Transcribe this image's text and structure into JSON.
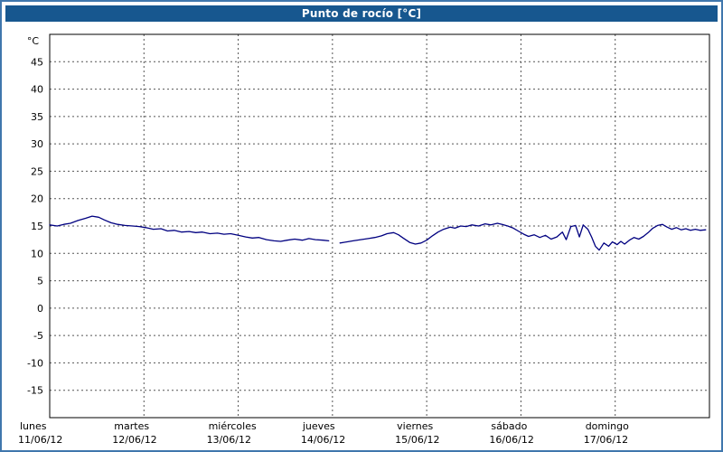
{
  "window": {
    "title": "Punto de rocío [°C]"
  },
  "colors": {
    "frame": "#4077ad",
    "title_bar": "#17578f",
    "title_text": "#ffffff",
    "grid": "#555555",
    "plot_border": "#000000",
    "line": "#000080",
    "background": "#ffffff"
  },
  "chart_data": {
    "type": "line",
    "title": "Punto de rocío [°C]",
    "ylabel": "°C",
    "xlabel": "",
    "grid": true,
    "legend_position": "none",
    "ylim": [
      -20,
      50
    ],
    "xlim": [
      0,
      7
    ],
    "y_ticks": [
      45,
      40,
      35,
      30,
      25,
      20,
      15,
      10,
      5,
      0,
      -5,
      -10,
      -15
    ],
    "x_days": [
      {
        "name": "lunes",
        "date": "11/06/12"
      },
      {
        "name": "martes",
        "date": "12/06/12"
      },
      {
        "name": "miércoles",
        "date": "13/06/12"
      },
      {
        "name": "jueves",
        "date": "14/06/12"
      },
      {
        "name": "viernes",
        "date": "15/06/12"
      },
      {
        "name": "sábado",
        "date": "16/06/12"
      },
      {
        "name": "domingo",
        "date": "17/06/12"
      }
    ],
    "series": [
      {
        "name": "Punto de rocío",
        "color": "#000080",
        "points": [
          [
            0.0,
            15.2
          ],
          [
            0.08,
            15.0
          ],
          [
            0.15,
            15.3
          ],
          [
            0.22,
            15.5
          ],
          [
            0.3,
            16.0
          ],
          [
            0.38,
            16.4
          ],
          [
            0.45,
            16.8
          ],
          [
            0.52,
            16.6
          ],
          [
            0.58,
            16.1
          ],
          [
            0.65,
            15.6
          ],
          [
            0.72,
            15.3
          ],
          [
            0.8,
            15.1
          ],
          [
            0.88,
            15.0
          ],
          [
            0.95,
            14.9
          ],
          [
            1.02,
            14.7
          ],
          [
            1.1,
            14.4
          ],
          [
            1.18,
            14.5
          ],
          [
            1.25,
            14.1
          ],
          [
            1.32,
            14.2
          ],
          [
            1.4,
            13.9
          ],
          [
            1.48,
            14.0
          ],
          [
            1.55,
            13.8
          ],
          [
            1.62,
            13.9
          ],
          [
            1.7,
            13.6
          ],
          [
            1.78,
            13.7
          ],
          [
            1.85,
            13.5
          ],
          [
            1.92,
            13.6
          ],
          [
            2.0,
            13.3
          ],
          [
            2.08,
            13.0
          ],
          [
            2.15,
            12.8
          ],
          [
            2.22,
            12.9
          ],
          [
            2.3,
            12.5
          ],
          [
            2.38,
            12.3
          ],
          [
            2.45,
            12.2
          ],
          [
            2.52,
            12.4
          ],
          [
            2.6,
            12.6
          ],
          [
            2.68,
            12.4
          ],
          [
            2.75,
            12.7
          ],
          [
            2.82,
            12.5
          ],
          [
            2.9,
            12.4
          ],
          [
            2.96,
            12.3
          ],
          null,
          [
            3.08,
            11.9
          ],
          [
            3.15,
            12.1
          ],
          [
            3.22,
            12.3
          ],
          [
            3.3,
            12.5
          ],
          [
            3.38,
            12.7
          ],
          [
            3.45,
            12.9
          ],
          [
            3.52,
            13.2
          ],
          [
            3.58,
            13.6
          ],
          [
            3.65,
            13.8
          ],
          [
            3.7,
            13.4
          ],
          [
            3.75,
            12.8
          ],
          [
            3.82,
            12.0
          ],
          [
            3.88,
            11.7
          ],
          [
            3.94,
            11.9
          ],
          [
            4.0,
            12.4
          ],
          [
            4.06,
            13.2
          ],
          [
            4.12,
            13.9
          ],
          [
            4.18,
            14.4
          ],
          [
            4.25,
            14.8
          ],
          [
            4.3,
            14.6
          ],
          [
            4.36,
            15.0
          ],
          [
            4.42,
            14.9
          ],
          [
            4.48,
            15.2
          ],
          [
            4.55,
            15.0
          ],
          [
            4.62,
            15.4
          ],
          [
            4.68,
            15.2
          ],
          [
            4.75,
            15.5
          ],
          [
            4.8,
            15.3
          ],
          [
            4.86,
            15.0
          ],
          [
            4.92,
            14.6
          ],
          [
            4.97,
            14.1
          ],
          [
            5.03,
            13.5
          ],
          [
            5.08,
            13.1
          ],
          [
            5.14,
            13.4
          ],
          [
            5.2,
            12.9
          ],
          [
            5.26,
            13.3
          ],
          [
            5.32,
            12.6
          ],
          [
            5.38,
            13.0
          ],
          [
            5.44,
            13.9
          ],
          [
            5.48,
            12.5
          ],
          [
            5.53,
            14.9
          ],
          [
            5.58,
            15.1
          ],
          [
            5.62,
            13.0
          ],
          [
            5.66,
            15.2
          ],
          [
            5.71,
            14.4
          ],
          [
            5.75,
            13.0
          ],
          [
            5.79,
            11.3
          ],
          [
            5.83,
            10.6
          ],
          [
            5.88,
            11.9
          ],
          [
            5.93,
            11.3
          ],
          [
            5.97,
            12.1
          ],
          [
            6.02,
            11.6
          ],
          [
            6.06,
            12.2
          ],
          [
            6.1,
            11.7
          ],
          [
            6.15,
            12.4
          ],
          [
            6.2,
            12.9
          ],
          [
            6.25,
            12.6
          ],
          [
            6.3,
            13.1
          ],
          [
            6.35,
            13.8
          ],
          [
            6.4,
            14.6
          ],
          [
            6.45,
            15.1
          ],
          [
            6.5,
            15.3
          ],
          [
            6.55,
            14.8
          ],
          [
            6.6,
            14.4
          ],
          [
            6.65,
            14.7
          ],
          [
            6.7,
            14.3
          ],
          [
            6.75,
            14.5
          ],
          [
            6.8,
            14.2
          ],
          [
            6.85,
            14.4
          ],
          [
            6.9,
            14.2
          ],
          [
            6.96,
            14.3
          ]
        ]
      }
    ]
  }
}
